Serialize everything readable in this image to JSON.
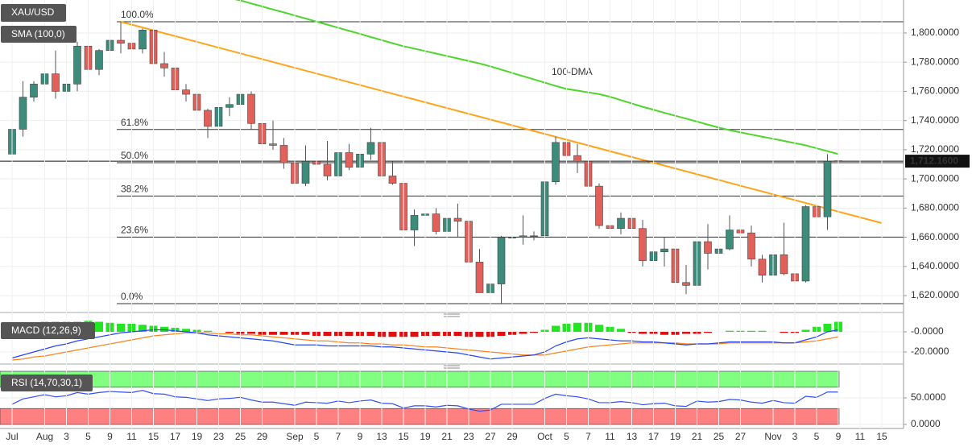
{
  "chart_data": {
    "type": "candlestick",
    "title": "XAU/USD",
    "up_color": "#3d8c7b",
    "down_color": "#e2605a",
    "categories": [
      "Jul",
      null,
      null,
      "Aug",
      null,
      "3",
      null,
      "5",
      null,
      "9",
      null,
      "11",
      null,
      "15",
      null,
      "17",
      null,
      "19",
      null,
      "23",
      null,
      "25",
      null,
      "29",
      null,
      null,
      "Sep",
      null,
      "5",
      null,
      "7",
      null,
      "9",
      null,
      "13",
      null,
      "15",
      null,
      "19",
      null,
      "21",
      null,
      "23",
      null,
      "27",
      null,
      "29",
      null,
      null,
      "Oct",
      null,
      "5",
      null,
      "7",
      null,
      "11",
      null,
      "13",
      null,
      "17",
      null,
      "19",
      null,
      "21",
      null,
      "25",
      null,
      "27",
      null,
      null,
      "Nov",
      null,
      "3",
      null,
      "5",
      null,
      "9",
      null,
      "11",
      null,
      "15"
    ],
    "candles": [
      [
        1717,
        1737,
        1711,
        1734
      ],
      [
        1734,
        1767,
        1729,
        1756
      ],
      [
        1756,
        1767,
        1753,
        1765
      ],
      [
        1765,
        1775,
        1759,
        1772
      ],
      [
        1772,
        1788,
        1755,
        1760
      ],
      [
        1760,
        1771,
        1754,
        1765
      ],
      [
        1765,
        1794,
        1760,
        1791
      ],
      [
        1791,
        1793,
        1764,
        1775
      ],
      [
        1775,
        1789,
        1771,
        1788
      ],
      [
        1788,
        1797,
        1785,
        1795
      ],
      [
        1795,
        1807.7,
        1786,
        1793
      ],
      [
        1793,
        1805,
        1784,
        1789
      ],
      [
        1789,
        1803,
        1786,
        1802
      ],
      [
        1802,
        1802,
        1772,
        1779
      ],
      [
        1779,
        1787,
        1770,
        1776
      ],
      [
        1776,
        1780,
        1760,
        1761
      ],
      [
        1761,
        1765,
        1753,
        1758
      ],
      [
        1758,
        1762,
        1745,
        1747
      ],
      [
        1747,
        1748,
        1728,
        1736
      ],
      [
        1736,
        1751,
        1733,
        1749
      ],
      [
        1749,
        1756,
        1743,
        1751
      ],
      [
        1751,
        1765,
        1748,
        1758
      ],
      [
        1758,
        1760,
        1734,
        1738
      ],
      [
        1738,
        1740,
        1720,
        1724
      ],
      [
        1724,
        1740,
        1720,
        1723
      ],
      [
        1723,
        1728,
        1707,
        1711
      ],
      [
        1711,
        1714,
        1689,
        1697
      ],
      [
        1697,
        1723,
        1695,
        1712
      ],
      [
        1712,
        1717,
        1706,
        1710
      ],
      [
        1710,
        1726,
        1699,
        1702
      ],
      [
        1702,
        1721,
        1691,
        1718
      ],
      [
        1718,
        1724,
        1706,
        1708
      ],
      [
        1708,
        1727,
        1707,
        1717
      ],
      [
        1717,
        1735,
        1713,
        1725
      ],
      [
        1725,
        1729,
        1697,
        1702
      ],
      [
        1702,
        1712,
        1696,
        1697
      ],
      [
        1697,
        1698,
        1660,
        1665
      ],
      [
        1665,
        1679,
        1654,
        1675
      ],
      [
        1675,
        1679,
        1661,
        1676
      ],
      [
        1676,
        1680,
        1662,
        1664
      ],
      [
        1664,
        1688,
        1654,
        1673
      ],
      [
        1673,
        1683,
        1660,
        1671
      ],
      [
        1671,
        1675,
        1639,
        1643
      ],
      [
        1643,
        1652,
        1622,
        1622
      ],
      [
        1622,
        1640,
        1621,
        1628
      ],
      [
        1628,
        1661,
        1614.5,
        1660
      ],
      [
        1660,
        1672,
        1641,
        1660
      ],
      [
        1660,
        1675,
        1655,
        1661
      ],
      [
        1661,
        1664,
        1658,
        1661
      ],
      [
        1661,
        1701,
        1660,
        1698
      ],
      [
        1698,
        1729,
        1696,
        1725
      ],
      [
        1725,
        1728,
        1707,
        1716
      ],
      [
        1716,
        1724,
        1704,
        1712
      ],
      [
        1712,
        1715,
        1690,
        1695
      ],
      [
        1695,
        1697,
        1666,
        1668
      ],
      [
        1668,
        1676,
        1661,
        1666
      ],
      [
        1666,
        1677,
        1662,
        1673
      ],
      [
        1673,
        1683,
        1642,
        1666
      ],
      [
        1666,
        1672,
        1640,
        1644
      ],
      [
        1644,
        1668,
        1642,
        1650
      ],
      [
        1650,
        1660,
        1640,
        1652
      ],
      [
        1652,
        1654,
        1628,
        1629
      ],
      [
        1629,
        1641,
        1621,
        1627
      ],
      [
        1627,
        1670,
        1618,
        1657
      ],
      [
        1657,
        1669,
        1638,
        1649
      ],
      [
        1649,
        1660,
        1643,
        1652
      ],
      [
        1652,
        1675,
        1651,
        1665
      ],
      [
        1665,
        1670,
        1656,
        1663
      ],
      [
        1663,
        1668,
        1640,
        1645
      ],
      [
        1645,
        1648,
        1629,
        1634
      ],
      [
        1634,
        1652,
        1631,
        1648
      ],
      [
        1648,
        1670,
        1634,
        1635
      ],
      [
        1635,
        1642,
        1616,
        1630
      ],
      [
        1630,
        1682,
        1629,
        1681
      ],
      [
        1681,
        1684,
        1667,
        1674
      ],
      [
        1674,
        1717,
        1665,
        1712
      ],
      [
        1712.5,
        1714,
        1710,
        1712.16
      ]
    ],
    "ylim": [
      1609,
      1822.6
    ],
    "yticks": [
      {
        "value": 1620,
        "label": "1,620.0000"
      },
      {
        "value": 1640,
        "label": "1,640.0000"
      },
      {
        "value": 1660,
        "label": "1,660.0000"
      },
      {
        "value": 1680,
        "label": "1,680.0000"
      },
      {
        "value": 1700,
        "label": "1,700.0000"
      },
      {
        "value": 1720,
        "label": "1,720.0000"
      },
      {
        "value": 1740,
        "label": "1,740.0000"
      },
      {
        "value": 1760,
        "label": "1,760.0000"
      },
      {
        "value": 1780,
        "label": "1,780.0000"
      },
      {
        "value": 1800,
        "label": "1,800.0000"
      }
    ],
    "grid": true,
    "last_price": {
      "value": 1712.16,
      "label": "1,712.1600"
    },
    "sma": {
      "name": "SMA (100,0)",
      "annotation": "100-DMA",
      "color": "#4cd62a",
      "values": [
        null,
        null,
        null,
        null,
        null,
        null,
        null,
        null,
        null,
        null,
        null,
        null,
        null,
        null,
        null,
        null,
        null,
        null,
        null,
        null,
        1824,
        1822.3,
        1820.2,
        1818.2,
        1816.1,
        1814.1,
        1812,
        1809.9,
        1807.8,
        1805.7,
        1803.6,
        1801.5,
        1799.4,
        1797.2,
        1795.1,
        1793,
        1790.9,
        1789.3,
        1787.6,
        1785.9,
        1784.2,
        1782.5,
        1780.8,
        1779.1,
        1777.1,
        1774.9,
        1772.6,
        1770.4,
        1768.2,
        1766,
        1763.7,
        1761.7,
        1760.5,
        1759.3,
        1758.1,
        1756.3,
        1754,
        1751.7,
        1749.4,
        1747.4,
        1745.3,
        1743.3,
        1741.3,
        1739.3,
        1737.2,
        1735.2,
        1733.4,
        1731.9,
        1730.4,
        1728.9,
        1727.5,
        1726,
        1724.5,
        1723,
        1721,
        1719,
        1717
      ]
    },
    "trendline": {
      "color": "#ffa31a",
      "values": [
        1807.7,
        1669.7
      ]
    },
    "fibonacci": [
      {
        "name": "100.0%",
        "price": 1807.7
      },
      {
        "name": "61.8%",
        "price": 1733.9
      },
      {
        "name": "50.0%",
        "price": 1711.1
      },
      {
        "name": "38.2%",
        "price": 1688.3
      },
      {
        "name": "23.6%",
        "price": 1660.1
      },
      {
        "name": "0.0%",
        "price": 1614.5
      }
    ],
    "macd": {
      "name": "MACD (12,26,9)",
      "ylim": [
        -32,
        12
      ],
      "yticks": [
        {
          "value": 0,
          "label": "-0.0000"
        },
        {
          "value": -20,
          "label": "-20.0000"
        }
      ],
      "up_color": "#22e622",
      "down_color": "#e01010",
      "histogram": [
        6,
        8,
        9,
        10,
        10,
        10,
        10,
        11,
        10,
        9,
        8,
        8,
        7,
        6,
        5,
        4,
        3,
        2,
        1,
        0,
        -1,
        -2,
        -2,
        -3,
        -3,
        -3,
        -3,
        -3,
        -4,
        -4,
        -4,
        -4,
        -4,
        -4,
        -5,
        -5,
        -5,
        -5,
        -4,
        -4,
        -4,
        -4,
        -5,
        -5,
        -5,
        -4,
        -3,
        -2,
        -1,
        2,
        6,
        8,
        9,
        9,
        7,
        5,
        3,
        -1,
        -2,
        -2,
        -3,
        -3,
        -2,
        -2,
        -1,
        0,
        1,
        1,
        1,
        1,
        0,
        -1,
        -1,
        2,
        5,
        8,
        10
      ],
      "macd_line": {
        "color": "#2746f2",
        "values": [
          -26,
          -23,
          -20,
          -17,
          -14,
          -12,
          -9,
          -7,
          -5,
          -3,
          -1,
          0,
          1,
          2,
          2,
          1,
          0,
          -1,
          -3,
          -4,
          -5,
          -6,
          -7,
          -8,
          -9,
          -11,
          -13,
          -13,
          -13,
          -14,
          -14,
          -14,
          -14,
          -14,
          -15,
          -15,
          -16,
          -17,
          -18,
          -19,
          -20,
          -21,
          -23,
          -25,
          -27,
          -26,
          -25,
          -24,
          -23,
          -20,
          -14,
          -10,
          -7,
          -6,
          -7,
          -8,
          -9,
          -9,
          -10,
          -10,
          -11,
          -12,
          -13,
          -12,
          -12,
          -11,
          -10,
          -10,
          -10,
          -10,
          -10,
          -11,
          -11,
          -8,
          -5,
          0,
          2
        ]
      },
      "signal_line": {
        "color": "#f5861f",
        "values": [
          -28,
          -27,
          -25,
          -24,
          -22,
          -20,
          -18,
          -16,
          -14,
          -12,
          -10,
          -8,
          -6,
          -4,
          -3,
          -2,
          -1,
          -1,
          -1,
          -2,
          -2,
          -3,
          -3,
          -4,
          -5,
          -6,
          -7,
          -8,
          -9,
          -9,
          -10,
          -11,
          -11,
          -12,
          -12,
          -13,
          -13,
          -14,
          -15,
          -15,
          -16,
          -17,
          -18,
          -19,
          -20,
          -21,
          -22,
          -23,
          -23,
          -23,
          -21,
          -19,
          -17,
          -15,
          -14,
          -13,
          -12,
          -11,
          -11,
          -11,
          -11,
          -11,
          -12,
          -12,
          -12,
          -12,
          -11,
          -11,
          -11,
          -11,
          -11,
          -11,
          -11,
          -10,
          -9,
          -7,
          -5
        ]
      }
    },
    "rsi": {
      "name": "RSI (14,70,30,1)",
      "ylim": [
        0,
        100
      ],
      "overbought": 70,
      "oversold": 30,
      "yticks": [
        {
          "value": 50,
          "label": "50.0000"
        },
        {
          "value": 0,
          "label": "0.0000"
        }
      ],
      "band_colors": [
        "#80ff80",
        "#ff8080"
      ],
      "color": "#3350f0",
      "values": [
        38,
        48,
        52,
        56,
        52,
        54,
        60,
        57,
        60,
        62,
        61,
        60,
        64,
        58,
        57,
        52,
        51,
        48,
        45,
        48,
        49,
        51,
        46,
        42,
        42,
        39,
        36,
        42,
        41,
        40,
        44,
        41,
        44,
        46,
        40,
        39,
        31,
        35,
        35,
        33,
        36,
        35,
        29,
        25,
        27,
        38,
        38,
        38,
        38,
        49,
        57,
        54,
        52,
        48,
        41,
        41,
        43,
        41,
        37,
        39,
        40,
        35,
        34,
        44,
        42,
        43,
        47,
        46,
        42,
        40,
        45,
        41,
        40,
        53,
        51,
        61,
        61
      ]
    }
  }
}
